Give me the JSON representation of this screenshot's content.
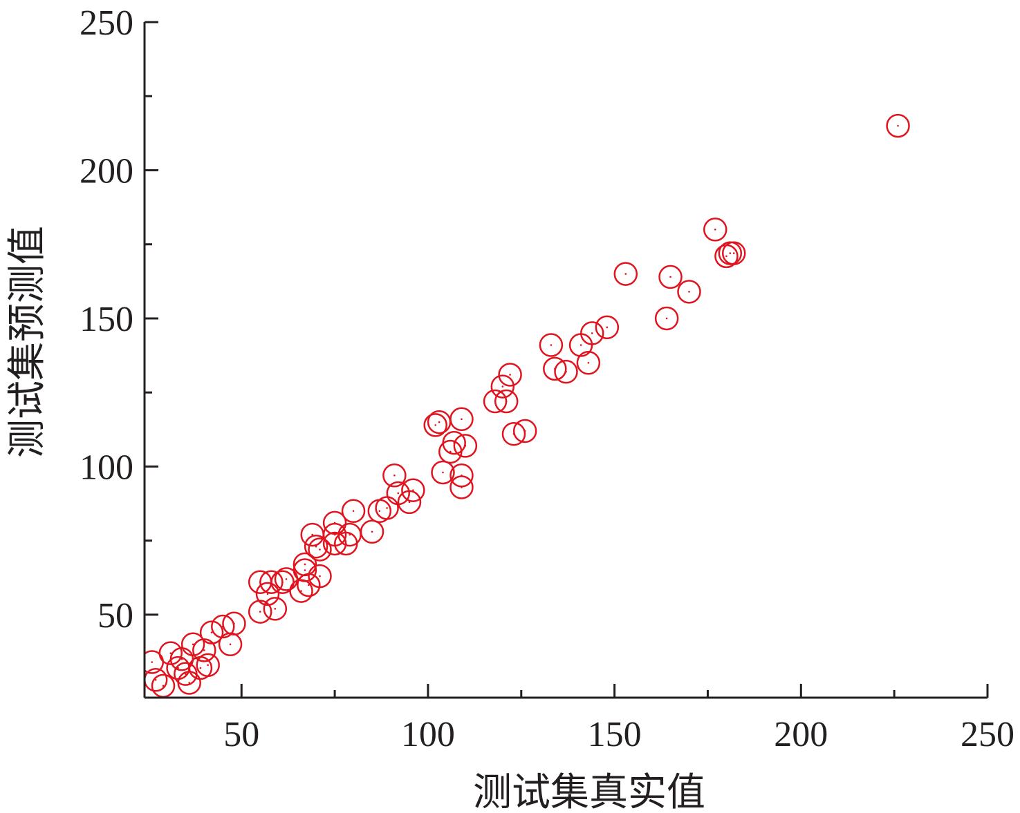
{
  "chart_data": {
    "type": "scatter",
    "title": "",
    "xlabel": "测试集真实值",
    "ylabel": "测试集预测值",
    "xlim": [
      24,
      250
    ],
    "ylim": [
      22,
      250
    ],
    "x_ticks": [
      50,
      100,
      150,
      200,
      250
    ],
    "y_ticks": [
      50,
      100,
      150,
      200,
      250
    ],
    "x_minor_ticks": [
      75,
      125,
      175,
      225
    ],
    "y_minor_ticks": [
      75,
      125,
      175,
      225
    ],
    "grid": false,
    "legend": "none",
    "marker": "open-circle",
    "marker_color": "#e0141e",
    "series": [
      {
        "points": [
          [
            26,
            34
          ],
          [
            27,
            28
          ],
          [
            29,
            26
          ],
          [
            31,
            37
          ],
          [
            33,
            32
          ],
          [
            34,
            35
          ],
          [
            35,
            30
          ],
          [
            36,
            27
          ],
          [
            37,
            40
          ],
          [
            39,
            32
          ],
          [
            40,
            38
          ],
          [
            41,
            33
          ],
          [
            42,
            44
          ],
          [
            45,
            46
          ],
          [
            47,
            40
          ],
          [
            48,
            47
          ],
          [
            55,
            61
          ],
          [
            55,
            51
          ],
          [
            57,
            57
          ],
          [
            58,
            61
          ],
          [
            59,
            52
          ],
          [
            61,
            61
          ],
          [
            62,
            62
          ],
          [
            66,
            58
          ],
          [
            67,
            67
          ],
          [
            67,
            65
          ],
          [
            68,
            60
          ],
          [
            69,
            77
          ],
          [
            70,
            73
          ],
          [
            71,
            72
          ],
          [
            71,
            63
          ],
          [
            75,
            81
          ],
          [
            75,
            74
          ],
          [
            75,
            77
          ],
          [
            78,
            74
          ],
          [
            79,
            77
          ],
          [
            80,
            85
          ],
          [
            85,
            78
          ],
          [
            87,
            85
          ],
          [
            89,
            86
          ],
          [
            91,
            97
          ],
          [
            92,
            91
          ],
          [
            95,
            88
          ],
          [
            96,
            92
          ],
          [
            102,
            114
          ],
          [
            103,
            115
          ],
          [
            104,
            98
          ],
          [
            106,
            105
          ],
          [
            107,
            108
          ],
          [
            109,
            93
          ],
          [
            109,
            116
          ],
          [
            109,
            97
          ],
          [
            110,
            107
          ],
          [
            118,
            122
          ],
          [
            120,
            127
          ],
          [
            121,
            122
          ],
          [
            122,
            131
          ],
          [
            123,
            111
          ],
          [
            126,
            112
          ],
          [
            133,
            141
          ],
          [
            134,
            133
          ],
          [
            137,
            132
          ],
          [
            141,
            141
          ],
          [
            143,
            135
          ],
          [
            144,
            145
          ],
          [
            148,
            147
          ],
          [
            153,
            165
          ],
          [
            164,
            150
          ],
          [
            165,
            164
          ],
          [
            170,
            159
          ],
          [
            177,
            180
          ],
          [
            180,
            171
          ],
          [
            181,
            172
          ],
          [
            182,
            172
          ],
          [
            226,
            215
          ]
        ]
      }
    ]
  }
}
